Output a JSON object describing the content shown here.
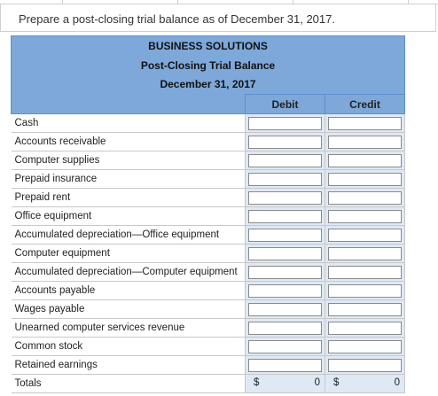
{
  "prompt": "Prepare a post-closing trial balance as of December 31, 2017.",
  "header": {
    "company": "BUSINESS SOLUTIONS",
    "statement": "Post-Closing Trial Balance",
    "date": "December 31, 2017"
  },
  "columns": {
    "debit": "Debit",
    "credit": "Credit"
  },
  "accounts": [
    "Cash",
    "Accounts receivable",
    "Computer supplies",
    "Prepaid insurance",
    "Prepaid rent",
    "Office equipment",
    "Accumulated depreciation—Office equipment",
    "Computer equipment",
    "Accumulated depreciation—Computer equipment",
    "Accounts payable",
    "Wages payable",
    "Unearned computer services revenue",
    "Common stock",
    "Retained earnings"
  ],
  "totals": {
    "label": "Totals",
    "debit_symbol": "$",
    "debit_value": "0",
    "credit_symbol": "$",
    "credit_value": "0"
  }
}
